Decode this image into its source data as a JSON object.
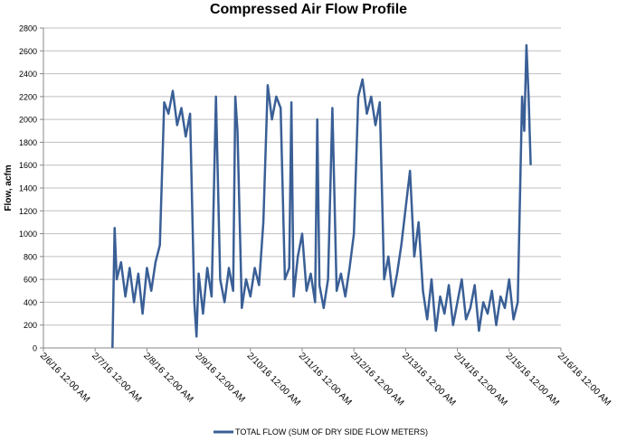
{
  "chart_data": {
    "type": "line",
    "title": "Compressed Air Flow Profile",
    "y_label": "Flow, acfm",
    "ylim": [
      0,
      2800
    ],
    "yticks": [
      0,
      200,
      400,
      600,
      800,
      1000,
      1200,
      1400,
      1600,
      1800,
      2000,
      2200,
      2400,
      2600,
      2800
    ],
    "xlim": [
      "2016-02-06T00:00",
      "2016-02-16T00:00"
    ],
    "xticks": [
      {
        "value": "2016-02-06T00:00",
        "label": "2/6/16 12:00 AM"
      },
      {
        "value": "2016-02-07T00:00",
        "label": "2/7/16 12:00 AM"
      },
      {
        "value": "2016-02-08T00:00",
        "label": "2/8/16 12:00 AM"
      },
      {
        "value": "2016-02-09T00:00",
        "label": "2/9/16 12:00 AM"
      },
      {
        "value": "2016-02-10T00:00",
        "label": "2/10/16 12:00 AM"
      },
      {
        "value": "2016-02-11T00:00",
        "label": "2/11/16 12:00 AM"
      },
      {
        "value": "2016-02-12T00:00",
        "label": "2/12/16 12:00 AM"
      },
      {
        "value": "2016-02-13T00:00",
        "label": "2/13/16 12:00 AM"
      },
      {
        "value": "2016-02-14T00:00",
        "label": "2/14/16 12:00 AM"
      },
      {
        "value": "2016-02-15T00:00",
        "label": "2/15/16 12:00 AM"
      },
      {
        "value": "2016-02-16T00:00",
        "label": "2/16/16 12:00 AM"
      }
    ],
    "grid": true,
    "legend": "bottom",
    "x": [
      "2016-02-07T08:00",
      "2016-02-07T09:00",
      "2016-02-07T10:00",
      "2016-02-07T12:00",
      "2016-02-07T14:00",
      "2016-02-07T16:00",
      "2016-02-07T18:00",
      "2016-02-07T20:00",
      "2016-02-07T22:00",
      "2016-02-08T00:00",
      "2016-02-08T02:00",
      "2016-02-08T04:00",
      "2016-02-08T06:00",
      "2016-02-08T08:00",
      "2016-02-08T10:00",
      "2016-02-08T12:00",
      "2016-02-08T14:00",
      "2016-02-08T16:00",
      "2016-02-08T18:00",
      "2016-02-08T20:00",
      "2016-02-08T22:00",
      "2016-02-08T23:00",
      "2016-02-09T00:00",
      "2016-02-09T02:00",
      "2016-02-09T04:00",
      "2016-02-09T06:00",
      "2016-02-09T08:00",
      "2016-02-09T10:00",
      "2016-02-09T12:00",
      "2016-02-09T14:00",
      "2016-02-09T16:00",
      "2016-02-09T17:00",
      "2016-02-09T18:00",
      "2016-02-09T20:00",
      "2016-02-09T22:00",
      "2016-02-10T00:00",
      "2016-02-10T02:00",
      "2016-02-10T04:00",
      "2016-02-10T06:00",
      "2016-02-10T08:00",
      "2016-02-10T10:00",
      "2016-02-10T12:00",
      "2016-02-10T14:00",
      "2016-02-10T16:00",
      "2016-02-10T18:00",
      "2016-02-10T19:00",
      "2016-02-10T20:00",
      "2016-02-10T22:00",
      "2016-02-11T00:00",
      "2016-02-11T02:00",
      "2016-02-11T04:00",
      "2016-02-11T06:00",
      "2016-02-11T07:00",
      "2016-02-11T08:00",
      "2016-02-11T10:00",
      "2016-02-11T12:00",
      "2016-02-11T14:00",
      "2016-02-11T16:00",
      "2016-02-11T18:00",
      "2016-02-11T20:00",
      "2016-02-11T22:00",
      "2016-02-12T00:00",
      "2016-02-12T02:00",
      "2016-02-12T04:00",
      "2016-02-12T06:00",
      "2016-02-12T08:00",
      "2016-02-12T10:00",
      "2016-02-12T12:00",
      "2016-02-12T14:00",
      "2016-02-12T16:00",
      "2016-02-12T18:00",
      "2016-02-12T20:00",
      "2016-02-12T22:00",
      "2016-02-13T02:00",
      "2016-02-13T04:00",
      "2016-02-13T06:00",
      "2016-02-13T08:00",
      "2016-02-13T10:00",
      "2016-02-13T12:00",
      "2016-02-13T14:00",
      "2016-02-13T16:00",
      "2016-02-13T18:00",
      "2016-02-13T20:00",
      "2016-02-13T22:00",
      "2016-02-14T00:00",
      "2016-02-14T02:00",
      "2016-02-14T04:00",
      "2016-02-14T06:00",
      "2016-02-14T08:00",
      "2016-02-14T10:00",
      "2016-02-14T12:00",
      "2016-02-14T14:00",
      "2016-02-14T16:00",
      "2016-02-14T18:00",
      "2016-02-14T20:00",
      "2016-02-14T22:00",
      "2016-02-15T00:00",
      "2016-02-15T02:00",
      "2016-02-15T04:00",
      "2016-02-15T06:00",
      "2016-02-15T07:00",
      "2016-02-15T08:00",
      "2016-02-15T09:00",
      "2016-02-15T10:00"
    ],
    "series": [
      {
        "name": "TOTAL FLOW (SUM OF DRY SIDE FLOW METERS)",
        "color": "#3a5f96",
        "values": [
          0,
          1050,
          600,
          750,
          450,
          700,
          400,
          650,
          300,
          700,
          500,
          750,
          900,
          2150,
          2050,
          2250,
          1950,
          2100,
          1850,
          2050,
          400,
          100,
          650,
          300,
          700,
          450,
          2200,
          600,
          400,
          700,
          500,
          2200,
          1900,
          350,
          600,
          450,
          700,
          550,
          1100,
          2300,
          2000,
          2200,
          2100,
          600,
          700,
          2150,
          450,
          800,
          1000,
          500,
          650,
          400,
          2000,
          550,
          350,
          600,
          2100,
          500,
          650,
          450,
          700,
          1000,
          2200,
          2350,
          2050,
          2200,
          1950,
          2150,
          600,
          800,
          450,
          650,
          900,
          1550,
          800,
          1100,
          500,
          250,
          600,
          150,
          450,
          300,
          550,
          200,
          400,
          600,
          250,
          350,
          550,
          150,
          400,
          300,
          500,
          200,
          450,
          350,
          600,
          250,
          400,
          2200,
          1900,
          2650,
          2200,
          1600
        ]
      }
    ]
  }
}
